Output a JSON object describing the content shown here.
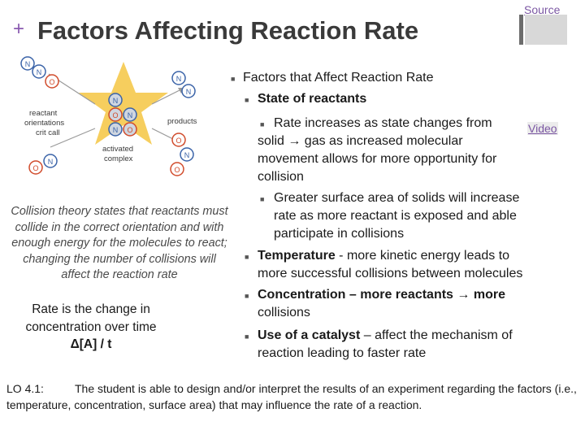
{
  "header": {
    "source_label": "Source",
    "plus": "+",
    "title": "Factors Affecting Reaction Rate"
  },
  "diagram": {
    "molecule_n": "N",
    "molecule_o": "O",
    "label_reactant": "reactant",
    "label_orientations": "orientations",
    "label_critcall": "crit call",
    "label_products": "products",
    "label_activated": "activated",
    "label_complex": "complex",
    "star_color": "#f4c542",
    "reactant_color": "#e0e0e0",
    "n_color": "#3a63a8",
    "o_color": "#d14b2b"
  },
  "left": {
    "caption": "Collision theory states that reactants must collide in the correct orientation and with enough energy for the molecules to react; changing the number of collisions will affect the reaction rate",
    "rate_line1": "Rate is the change in concentration over time",
    "rate_formula": "Δ[A] / t"
  },
  "right": {
    "l1": "Factors that Affect Reaction Rate",
    "l2": "State of reactants",
    "l3a": "Rate increases as state changes from solid",
    "l3a_line1": "Rate increases as state changes from",
    "l3a_line2": "solid → gas as increased molecular",
    "l3a_line3": "movement allows for more opportunity for",
    "l3a_line4": "collision",
    "l3b_line1": "Greater surface area of solids will increase",
    "l3b_line2": "rate as more reactant is exposed and able",
    "l3b_line3": "participate in collisions",
    "temp_bold": "Temperature",
    "temp_rest": " - more kinetic energy leads to",
    "temp_line2": "more successful collisions between molecules",
    "conc_bold": "Concentration – more reactants → more",
    "conc_line2": "collisions",
    "cat_bold": "Use of a catalyst",
    "cat_rest": " – affect the mechanism of",
    "cat_line2": "reaction leading to faster rate",
    "video_label": "Video"
  },
  "footer": {
    "lo_label": "LO 4.1:",
    "lo_text": "The student is able to design and/or interpret the results of an experiment regarding the factors (i.e., temperature, concentration, surface area) that may influence the rate of a reaction."
  },
  "colors": {
    "accent_purple": "#8a5ab0",
    "link_purple": "#7b57a3"
  }
}
